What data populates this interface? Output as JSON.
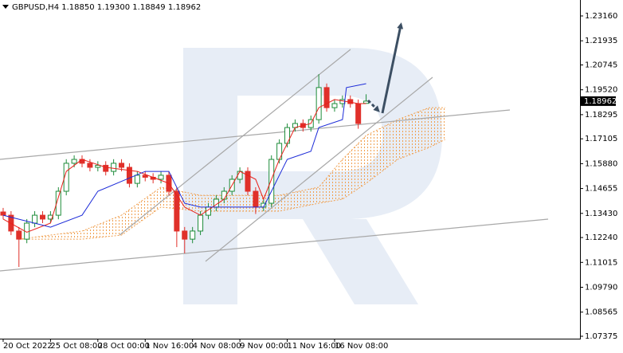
{
  "chart_data": {
    "type": "candlestick",
    "title": "GBPUSD,H4  1.18850 1.19300 1.18849 1.18962",
    "up_color": "#1e8c3a",
    "down_color": "#e0302a",
    "candles": {
      "open": [
        1.135,
        1.1334,
        1.1256,
        1.1216,
        1.1295,
        1.1334,
        1.1315,
        1.1334,
        1.1452,
        1.159,
        1.1609,
        1.159,
        1.157,
        1.158,
        1.155,
        1.159,
        1.157,
        1.1491,
        1.1531,
        1.1521,
        1.1511,
        1.1531,
        1.1452,
        1.1256,
        1.1216,
        1.1256,
        1.1334,
        1.1374,
        1.1413,
        1.1452,
        1.1511,
        1.155,
        1.1452,
        1.1374,
        1.1393,
        1.1609,
        1.1688,
        1.1766,
        1.1786,
        1.1766,
        1.1805,
        1.1963,
        1.1864,
        1.1884,
        1.1904,
        1.1884,
        1.1885
      ],
      "high": [
        1.137,
        1.1354,
        1.1276,
        1.1315,
        1.1354,
        1.1354,
        1.1354,
        1.1472,
        1.161,
        1.1629,
        1.1629,
        1.161,
        1.16,
        1.16,
        1.161,
        1.161,
        1.159,
        1.1551,
        1.1551,
        1.1541,
        1.1551,
        1.1551,
        1.1472,
        1.1276,
        1.1276,
        1.1354,
        1.1394,
        1.1433,
        1.1472,
        1.1531,
        1.157,
        1.157,
        1.1472,
        1.1413,
        1.1629,
        1.1708,
        1.1786,
        1.1806,
        1.1806,
        1.1825,
        1.2029,
        1.1983,
        1.1904,
        1.1924,
        1.1924,
        1.1904,
        1.193
      ],
      "low": [
        1.1314,
        1.1236,
        1.1079,
        1.1196,
        1.1275,
        1.1295,
        1.1295,
        1.1314,
        1.1432,
        1.157,
        1.157,
        1.155,
        1.155,
        1.153,
        1.153,
        1.155,
        1.1471,
        1.1471,
        1.1501,
        1.1491,
        1.1491,
        1.1432,
        1.1177,
        1.1146,
        1.1196,
        1.1236,
        1.1314,
        1.1354,
        1.1393,
        1.1432,
        1.1491,
        1.1432,
        1.134,
        1.1354,
        1.1373,
        1.1589,
        1.1668,
        1.1746,
        1.1746,
        1.1746,
        1.1785,
        1.1844,
        1.1844,
        1.1864,
        1.1864,
        1.176,
        1.18849
      ],
      "close": [
        1.1334,
        1.1256,
        1.1216,
        1.1295,
        1.1334,
        1.1315,
        1.1334,
        1.1452,
        1.159,
        1.1609,
        1.159,
        1.157,
        1.158,
        1.155,
        1.159,
        1.157,
        1.1491,
        1.1531,
        1.1521,
        1.1511,
        1.1531,
        1.1452,
        1.1256,
        1.1216,
        1.1256,
        1.1334,
        1.1374,
        1.1413,
        1.1452,
        1.1511,
        1.155,
        1.1452,
        1.1374,
        1.1393,
        1.1609,
        1.1688,
        1.1766,
        1.1786,
        1.1766,
        1.1805,
        1.1963,
        1.1864,
        1.1884,
        1.1904,
        1.1884,
        1.1786,
        1.18962
      ]
    },
    "tenkan": {
      "color": "#e8201a",
      "x": [
        0,
        3,
        6,
        8,
        10,
        13,
        17,
        21,
        23,
        25,
        28,
        30,
        32,
        33,
        35,
        37,
        39,
        40,
        42,
        45,
        46
      ],
      "values": [
        1.1315,
        1.125,
        1.1295,
        1.155,
        1.1609,
        1.157,
        1.155,
        1.1491,
        1.1374,
        1.1334,
        1.1413,
        1.155,
        1.1511,
        1.1413,
        1.1609,
        1.1766,
        1.1786,
        1.1864,
        1.1904,
        1.1884,
        1.1884
      ]
    },
    "kijun": {
      "color": "#1c2bd8",
      "x": [
        0,
        6,
        10,
        12,
        18,
        21,
        23,
        25,
        33,
        34,
        35,
        36,
        39,
        40,
        43,
        43.5,
        46
      ],
      "values": [
        1.1334,
        1.1275,
        1.1334,
        1.1452,
        1.155,
        1.155,
        1.1393,
        1.1374,
        1.1374,
        1.1452,
        1.1531,
        1.1609,
        1.1649,
        1.1766,
        1.1805,
        1.1963,
        1.1982
      ]
    },
    "cloud": {
      "color": "#f0a050",
      "x": [
        2,
        10,
        15,
        20,
        25,
        30,
        35,
        40,
        43,
        46,
        50,
        54,
        56
      ],
      "span_a": [
        1.1216,
        1.1216,
        1.1236,
        1.1374,
        1.1354,
        1.1354,
        1.1354,
        1.1393,
        1.1413,
        1.1491,
        1.1609,
        1.1668,
        1.1707
      ],
      "span_b": [
        1.1216,
        1.1256,
        1.1334,
        1.1472,
        1.1432,
        1.1432,
        1.1432,
        1.1472,
        1.1609,
        1.1727,
        1.1805,
        1.1864,
        1.1864
      ]
    },
    "xlim": [
      -0.4,
      73.1
    ],
    "xticks": [
      {
        "value": 0,
        "label": "20 Oct 2022"
      },
      {
        "value": 6,
        "label": "25 Oct 08:00"
      },
      {
        "value": 12,
        "label": "28 Oct 00:00"
      },
      {
        "value": 18,
        "label": "1 Nov 16:00"
      },
      {
        "value": 24,
        "label": "4 Nov 08:00"
      },
      {
        "value": 30,
        "label": "9 Nov 00:00"
      },
      {
        "value": 36,
        "label": "11 Nov 16:00"
      },
      {
        "value": 42,
        "label": "16 Nov 08:00"
      }
    ],
    "ylim": [
      1.07257,
      1.23945
    ],
    "yticks": [
      {
        "value": 1.2316,
        "label": "1.23160"
      },
      {
        "value": 1.21935,
        "label": "1.21935"
      },
      {
        "value": 1.20745,
        "label": "1.20745"
      },
      {
        "value": 1.1952,
        "label": "1.19520"
      },
      {
        "value": 1.18295,
        "label": "1.18295"
      },
      {
        "value": 1.17105,
        "label": "1.17105"
      },
      {
        "value": 1.1588,
        "label": "1.15880"
      },
      {
        "value": 1.14655,
        "label": "1.14655"
      },
      {
        "value": 1.1343,
        "label": "1.13430"
      },
      {
        "value": 1.1224,
        "label": "1.12240"
      },
      {
        "value": 1.11015,
        "label": "1.11015"
      },
      {
        "value": 1.0979,
        "label": "1.09790"
      },
      {
        "value": 1.08565,
        "label": "1.08565"
      },
      {
        "value": 1.07375,
        "label": "1.07375"
      }
    ],
    "price_label": {
      "value": 1.18962,
      "label": "1.18962"
    }
  }
}
